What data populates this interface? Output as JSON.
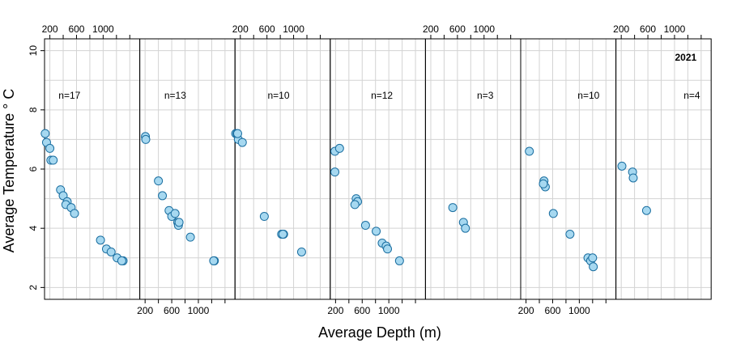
{
  "chart_data": {
    "type": "scatter",
    "xlabel": "Average Depth (m)",
    "ylabel": "Average Temperature ° C",
    "xlim": [
      120,
      1550
    ],
    "ylim": [
      1.6,
      10.4
    ],
    "x_ticks": [
      200,
      600,
      1000
    ],
    "x_tick_labels": [
      "200",
      "600",
      "1000"
    ],
    "y_ticks": [
      2,
      4,
      6,
      8,
      10
    ],
    "y_tick_labels": [
      "2",
      "4",
      "6",
      "8",
      "10"
    ],
    "x_minor_grid": [
      200,
      400,
      600,
      800,
      1000,
      1200,
      1400
    ],
    "y_minor_grid": [
      2,
      3,
      4,
      5,
      6,
      7,
      8,
      9,
      10
    ],
    "grid": true,
    "marker_fill": "#a6d8f0",
    "marker_edge": "#1a6ea0",
    "grid_color": "#d3d3d3",
    "strip_year": "2021",
    "panels": [
      {
        "count_label": "n=17",
        "points": [
          {
            "x": 130,
            "y": 7.2
          },
          {
            "x": 150,
            "y": 6.9
          },
          {
            "x": 200,
            "y": 6.7
          },
          {
            "x": 215,
            "y": 6.3
          },
          {
            "x": 250,
            "y": 6.3
          },
          {
            "x": 360,
            "y": 5.3
          },
          {
            "x": 400,
            "y": 5.1
          },
          {
            "x": 460,
            "y": 4.9
          },
          {
            "x": 440,
            "y": 4.8
          },
          {
            "x": 520,
            "y": 4.7
          },
          {
            "x": 570,
            "y": 4.5
          },
          {
            "x": 960,
            "y": 3.6
          },
          {
            "x": 1050,
            "y": 3.3
          },
          {
            "x": 1120,
            "y": 3.2
          },
          {
            "x": 1210,
            "y": 3.0
          },
          {
            "x": 1300,
            "y": 2.9
          },
          {
            "x": 1280,
            "y": 2.9
          }
        ]
      },
      {
        "count_label": "n=13",
        "points": [
          {
            "x": 205,
            "y": 7.1
          },
          {
            "x": 210,
            "y": 7.0
          },
          {
            "x": 400,
            "y": 5.6
          },
          {
            "x": 460,
            "y": 5.1
          },
          {
            "x": 560,
            "y": 4.6
          },
          {
            "x": 600,
            "y": 4.4
          },
          {
            "x": 650,
            "y": 4.5
          },
          {
            "x": 690,
            "y": 4.2
          },
          {
            "x": 700,
            "y": 4.1
          },
          {
            "x": 710,
            "y": 4.2
          },
          {
            "x": 880,
            "y": 3.7
          },
          {
            "x": 1240,
            "y": 2.9
          },
          {
            "x": 1230,
            "y": 2.9
          }
        ]
      },
      {
        "count_label": "n=10",
        "points": [
          {
            "x": 130,
            "y": 7.2
          },
          {
            "x": 150,
            "y": 7.2
          },
          {
            "x": 170,
            "y": 7.0
          },
          {
            "x": 230,
            "y": 6.9
          },
          {
            "x": 160,
            "y": 7.2
          },
          {
            "x": 560,
            "y": 4.4
          },
          {
            "x": 850,
            "y": 3.8
          },
          {
            "x": 820,
            "y": 3.8
          },
          {
            "x": 840,
            "y": 3.8
          },
          {
            "x": 1120,
            "y": 3.2
          }
        ]
      },
      {
        "count_label": "n=12",
        "points": [
          {
            "x": 190,
            "y": 6.6
          },
          {
            "x": 260,
            "y": 6.7
          },
          {
            "x": 190,
            "y": 5.9
          },
          {
            "x": 510,
            "y": 5.0
          },
          {
            "x": 530,
            "y": 4.9
          },
          {
            "x": 490,
            "y": 4.8
          },
          {
            "x": 650,
            "y": 4.1
          },
          {
            "x": 810,
            "y": 3.9
          },
          {
            "x": 900,
            "y": 3.5
          },
          {
            "x": 960,
            "y": 3.4
          },
          {
            "x": 980,
            "y": 3.3
          },
          {
            "x": 1160,
            "y": 2.9
          }
        ]
      },
      {
        "count_label": "n=3",
        "points": [
          {
            "x": 530,
            "y": 4.7
          },
          {
            "x": 690,
            "y": 4.2
          },
          {
            "x": 720,
            "y": 4.0
          }
        ]
      },
      {
        "count_label": "n=10",
        "points": [
          {
            "x": 250,
            "y": 6.6
          },
          {
            "x": 470,
            "y": 5.6
          },
          {
            "x": 490,
            "y": 5.4
          },
          {
            "x": 460,
            "y": 5.5
          },
          {
            "x": 610,
            "y": 4.5
          },
          {
            "x": 860,
            "y": 3.8
          },
          {
            "x": 1130,
            "y": 3.0
          },
          {
            "x": 1170,
            "y": 2.9
          },
          {
            "x": 1200,
            "y": 3.0
          },
          {
            "x": 1210,
            "y": 2.7
          }
        ]
      },
      {
        "count_label": "n=4",
        "points": [
          {
            "x": 210,
            "y": 6.1
          },
          {
            "x": 370,
            "y": 5.9
          },
          {
            "x": 380,
            "y": 5.7
          },
          {
            "x": 580,
            "y": 4.6
          }
        ]
      }
    ]
  }
}
